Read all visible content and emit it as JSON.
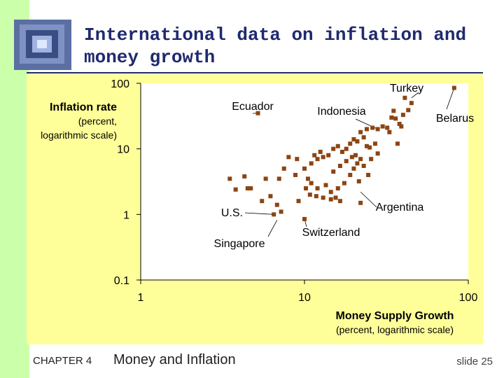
{
  "slide": {
    "title_line1": "International data on inflation and",
    "title_line2": "money growth",
    "chapter": "CHAPTER 4",
    "chapter_title": "Money and Inflation",
    "slide_number": "slide 25"
  },
  "colors": {
    "background": "#ffffff",
    "left_stripe": "#ccffaa",
    "chart_background": "#ffff99",
    "title": "#1f2a6e",
    "marker": "#8b4513"
  },
  "chart_data": {
    "type": "scatter",
    "x_scale": "log",
    "y_scale": "log",
    "xlim": [
      1,
      100
    ],
    "ylim": [
      0.1,
      100
    ],
    "x_ticks": [
      1,
      10,
      100
    ],
    "x_tick_labels": [
      "1",
      "10",
      "100"
    ],
    "y_ticks": [
      0.1,
      1,
      10,
      100
    ],
    "y_tick_labels": [
      "0.1",
      "1",
      "10",
      "100"
    ],
    "xlabel": "Money Supply Growth",
    "xlabel_sub": "(percent, logarithmic scale)",
    "ylabel": "Inflation rate",
    "ylabel_sub1": "(percent,",
    "ylabel_sub2": "logarithmic scale)",
    "grid": false,
    "points": [
      {
        "x": 82,
        "y": 85
      },
      {
        "x": 45,
        "y": 50
      },
      {
        "x": 5.2,
        "y": 35
      },
      {
        "x": 35,
        "y": 38
      },
      {
        "x": 40,
        "y": 33
      },
      {
        "x": 38,
        "y": 24
      },
      {
        "x": 30,
        "y": 22
      },
      {
        "x": 28,
        "y": 20
      },
      {
        "x": 32,
        "y": 21
      },
      {
        "x": 39,
        "y": 22
      },
      {
        "x": 37,
        "y": 12
      },
      {
        "x": 26,
        "y": 21
      },
      {
        "x": 24,
        "y": 20
      },
      {
        "x": 22,
        "y": 18
      },
      {
        "x": 20,
        "y": 14
      },
      {
        "x": 21,
        "y": 13
      },
      {
        "x": 23,
        "y": 15
      },
      {
        "x": 24,
        "y": 11
      },
      {
        "x": 25,
        "y": 10.5
      },
      {
        "x": 27,
        "y": 12
      },
      {
        "x": 28,
        "y": 8.5
      },
      {
        "x": 19,
        "y": 12
      },
      {
        "x": 18,
        "y": 10
      },
      {
        "x": 17,
        "y": 9
      },
      {
        "x": 15,
        "y": 10
      },
      {
        "x": 16,
        "y": 11
      },
      {
        "x": 14,
        "y": 8
      },
      {
        "x": 13,
        "y": 7.5
      },
      {
        "x": 12,
        "y": 7
      },
      {
        "x": 11,
        "y": 6
      },
      {
        "x": 9,
        "y": 7
      },
      {
        "x": 8,
        "y": 7.5
      },
      {
        "x": 10,
        "y": 5
      },
      {
        "x": 7.5,
        "y": 5
      },
      {
        "x": 7,
        "y": 3.5
      },
      {
        "x": 8.8,
        "y": 4
      },
      {
        "x": 10.5,
        "y": 3.5
      },
      {
        "x": 11,
        "y": 3
      },
      {
        "x": 12,
        "y": 2.5
      },
      {
        "x": 13.5,
        "y": 2.8
      },
      {
        "x": 14.5,
        "y": 2.2
      },
      {
        "x": 16,
        "y": 2.5
      },
      {
        "x": 17.5,
        "y": 3
      },
      {
        "x": 19,
        "y": 4
      },
      {
        "x": 20,
        "y": 5
      },
      {
        "x": 21,
        "y": 6
      },
      {
        "x": 22,
        "y": 7
      },
      {
        "x": 23,
        "y": 5.5
      },
      {
        "x": 24.5,
        "y": 4
      },
      {
        "x": 21.5,
        "y": 3.2
      },
      {
        "x": 15,
        "y": 4.5
      },
      {
        "x": 16.5,
        "y": 5.5
      },
      {
        "x": 18,
        "y": 6.5
      },
      {
        "x": 19.5,
        "y": 7.5
      },
      {
        "x": 20.5,
        "y": 8
      },
      {
        "x": 25.5,
        "y": 7
      },
      {
        "x": 12.5,
        "y": 9
      },
      {
        "x": 11.5,
        "y": 8
      },
      {
        "x": 10.2,
        "y": 2.5
      },
      {
        "x": 10.8,
        "y": 2
      },
      {
        "x": 9.2,
        "y": 1.6
      },
      {
        "x": 11.8,
        "y": 1.9
      },
      {
        "x": 15.5,
        "y": 1.8
      },
      {
        "x": 16.5,
        "y": 1.6
      },
      {
        "x": 22,
        "y": 1.5
      },
      {
        "x": 13,
        "y": 1.8
      },
      {
        "x": 3.5,
        "y": 3.5
      },
      {
        "x": 4.3,
        "y": 3.8
      },
      {
        "x": 4.5,
        "y": 2.5
      },
      {
        "x": 4.7,
        "y": 2.5
      },
      {
        "x": 3.8,
        "y": 2.4
      },
      {
        "x": 5.8,
        "y": 3.5
      },
      {
        "x": 6.2,
        "y": 1.9
      },
      {
        "x": 6.8,
        "y": 1.4
      },
      {
        "x": 5.5,
        "y": 1.6
      },
      {
        "x": 6.5,
        "y": 1.0
      },
      {
        "x": 7.2,
        "y": 1.1
      },
      {
        "x": 10,
        "y": 0.85
      },
      {
        "x": 14.5,
        "y": 1.7
      },
      {
        "x": 33,
        "y": 18
      },
      {
        "x": 41,
        "y": 60
      },
      {
        "x": 43,
        "y": 39
      },
      {
        "x": 34,
        "y": 30
      },
      {
        "x": 36,
        "y": 29
      }
    ],
    "annotations": [
      {
        "text": "Turkey",
        "x": 45,
        "y": 60
      },
      {
        "text": "Ecuador",
        "x": 5.2,
        "y": 35
      },
      {
        "text": "Indonesia",
        "x": 28,
        "y": 20
      },
      {
        "text": "Belarus",
        "x": 82,
        "y": 85
      },
      {
        "text": "Argentina",
        "x": 22,
        "y": 2.2
      },
      {
        "text": "U.S.",
        "x": 6.5,
        "y": 1.0
      },
      {
        "text": "Switzerland",
        "x": 10,
        "y": 0.85
      },
      {
        "text": "Singapore",
        "x": 6.8,
        "y": 0.82
      }
    ]
  }
}
